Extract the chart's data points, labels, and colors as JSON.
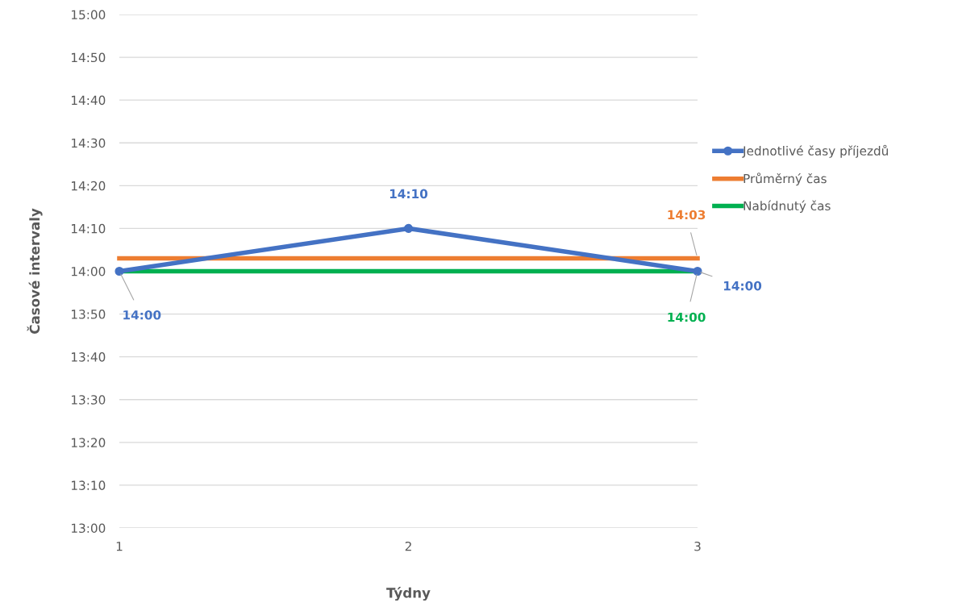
{
  "chart_data": {
    "type": "line",
    "xlabel": "Týdny",
    "ylabel": "Časové intervaly",
    "x": [
      1,
      2,
      3
    ],
    "xlim": [
      1,
      3
    ],
    "xticks": [
      1,
      2,
      3
    ],
    "ylim": [
      13,
      15
    ],
    "yticks": [
      {
        "value": 13,
        "label": "13:00"
      },
      {
        "value": 13.1667,
        "label": "13:10"
      },
      {
        "value": 13.3333,
        "label": "13:20"
      },
      {
        "value": 13.5,
        "label": "13:30"
      },
      {
        "value": 13.6667,
        "label": "13:40"
      },
      {
        "value": 13.8333,
        "label": "13:50"
      },
      {
        "value": 14,
        "label": "14:00"
      },
      {
        "value": 14.1667,
        "label": "14:10"
      },
      {
        "value": 14.3333,
        "label": "14:20"
      },
      {
        "value": 14.5,
        "label": "14:30"
      },
      {
        "value": 14.6667,
        "label": "14:40"
      },
      {
        "value": 14.8333,
        "label": "14:50"
      },
      {
        "value": 15,
        "label": "15:00"
      }
    ],
    "grid": "y",
    "legend": "right",
    "series": [
      {
        "name": "Jednotlivé časy příjezdů",
        "color": "#4472c4",
        "marker": "circle",
        "values": [
          14,
          14.1667,
          14
        ],
        "value_labels": [
          "14:00",
          "14:10",
          "14:00"
        ]
      },
      {
        "name": "Průměrný čas",
        "color": "#ed7d31",
        "marker": "none",
        "values": [
          14.05,
          14.05,
          14.05
        ],
        "value_labels": [
          null,
          null,
          "14:03"
        ]
      },
      {
        "name": "Nabídnutý čas",
        "color": "#00b050",
        "marker": "none",
        "values": [
          14,
          14,
          14
        ],
        "value_labels": [
          null,
          null,
          "14:00"
        ]
      }
    ]
  }
}
